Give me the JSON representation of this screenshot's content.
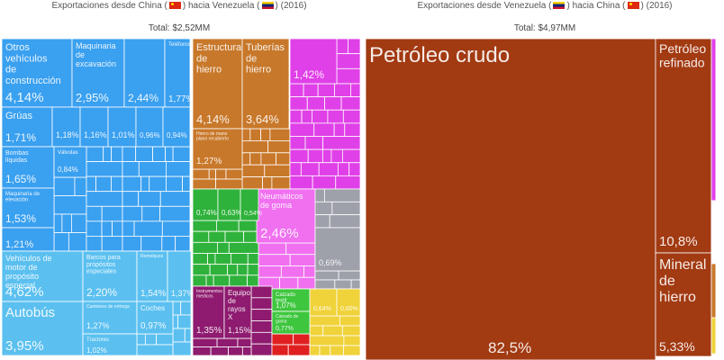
{
  "colors": {
    "machinery": "#3aa0f0",
    "transport": "#5bc0f0",
    "metals": "#c8782a",
    "textiles": "#e040e8",
    "rubber": "#f070f0",
    "misc": "#9ea0aa",
    "electronics": "#8e1b6f",
    "chemicals": "#2fb23b",
    "footwear": "#3ec63e",
    "food": "#f0d23a",
    "minerals": "#a23a12",
    "stone": "#f0a0b0",
    "other": "#d0d0d0"
  },
  "chart_data": [
    {
      "type": "treemap",
      "title_prefix": "Exportaciones desde China",
      "title_middle": "hacia Venezuela",
      "title_year": "(2016)",
      "total_label": "Total: $2,52MM",
      "items": [
        {
          "group": "machinery",
          "name": "Otros vehículos de construcción",
          "share": "4,14%"
        },
        {
          "group": "machinery",
          "name": "Maquinaria de excavación",
          "share": "2,95%"
        },
        {
          "group": "machinery",
          "name": "",
          "share": "2,44%"
        },
        {
          "group": "machinery",
          "name": "Teléfonos",
          "share": "1,77%"
        },
        {
          "group": "machinery",
          "name": "Grúas",
          "share": "1,71%"
        },
        {
          "group": "machinery",
          "name": "",
          "share": "1,18%"
        },
        {
          "group": "machinery",
          "name": "",
          "share": "1,16%"
        },
        {
          "group": "machinery",
          "name": "",
          "share": "1,01%"
        },
        {
          "group": "machinery",
          "name": "",
          "share": "0,96%"
        },
        {
          "group": "machinery",
          "name": "",
          "share": "0,94%"
        },
        {
          "group": "machinery",
          "name": "Bombas líquidas",
          "share": "1,65%"
        },
        {
          "group": "machinery",
          "name": "Válvulas",
          "share": "0,84%"
        },
        {
          "group": "machinery",
          "name": "Maquinaria de elevación",
          "share": "1,53%"
        },
        {
          "group": "machinery",
          "name": "",
          "share": "1,21%"
        },
        {
          "group": "transport",
          "name": "Vehículos de motor de propósito especial",
          "share": "4,62%"
        },
        {
          "group": "transport",
          "name": "Autobús",
          "share": "3,95%"
        },
        {
          "group": "transport",
          "name": "Barcos para propósitos especiales",
          "share": "2,20%"
        },
        {
          "group": "transport",
          "name": "Remolques",
          "share": "1,54%"
        },
        {
          "group": "transport",
          "name": "",
          "share": "1,37%"
        },
        {
          "group": "transport",
          "name": "Camiones de entrega",
          "share": "1,27%"
        },
        {
          "group": "transport",
          "name": "Coches",
          "share": "0,97%"
        },
        {
          "group": "transport",
          "name": "Tractores",
          "share": "1,02%"
        },
        {
          "group": "metals",
          "name": "Estructuras de hierro",
          "share": "4,14%"
        },
        {
          "group": "metals",
          "name": "Tuberías de hierro",
          "share": "3,64%"
        },
        {
          "group": "metals",
          "name": "Hierro de mano plano recubierto",
          "share": "1,27%"
        },
        {
          "group": "textiles",
          "name": "",
          "share": "1,42%"
        },
        {
          "group": "rubber",
          "name": "Neumáticos de goma",
          "share": "2,46%"
        },
        {
          "group": "misc",
          "name": "",
          "share": "0,69%"
        },
        {
          "group": "chemicals",
          "name": "",
          "share": "0,74%"
        },
        {
          "group": "chemicals",
          "name": "",
          "share": "0,63%"
        },
        {
          "group": "chemicals",
          "name": "",
          "share": "0,54%"
        },
        {
          "group": "electronics",
          "name": "Instrumentos medicos",
          "share": "1,35%"
        },
        {
          "group": "electronics",
          "name": "Equipo de rayos X",
          "share": "1,15%"
        },
        {
          "group": "footwear",
          "name": "Calzado textil",
          "share": "1,07%"
        },
        {
          "group": "footwear",
          "name": "Calzado de goma",
          "share": "0,77%"
        },
        {
          "group": "food",
          "name": "",
          "share": "0,64%"
        },
        {
          "group": "food",
          "name": "",
          "share": "0,60%"
        }
      ]
    },
    {
      "type": "treemap",
      "title_prefix": "Exportaciones desde Venezuela",
      "title_middle": "hacia China",
      "title_year": "(2016)",
      "total_label": "Total: $4,97MM",
      "items": [
        {
          "group": "minerals",
          "name": "Petróleo crudo",
          "share": "82,5%"
        },
        {
          "group": "minerals",
          "name": "Petróleo refinado",
          "share": "10,8%"
        },
        {
          "group": "minerals",
          "name": "Mineral de hierro",
          "share": "5,33%"
        }
      ]
    }
  ]
}
